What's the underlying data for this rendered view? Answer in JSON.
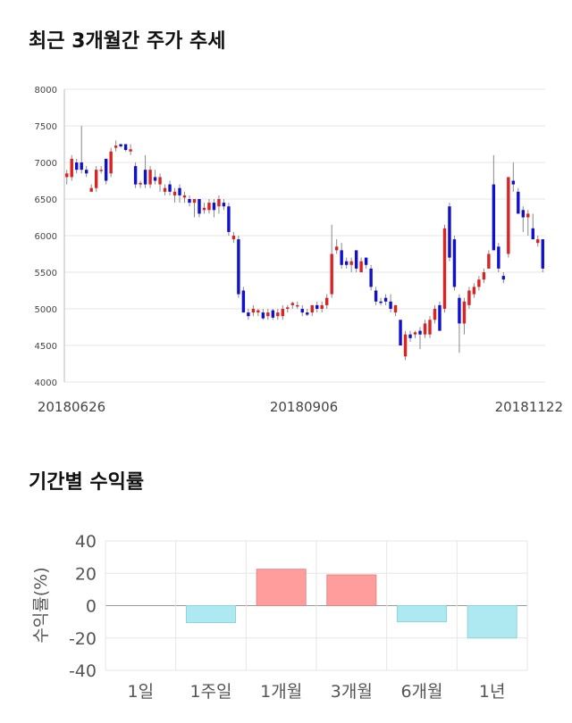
{
  "sections": {
    "stock_trend_title": "최근 3개월간 주가 추세",
    "returns_title": "기간별 수익률"
  },
  "chart_data": [
    {
      "type": "candlestick",
      "title": "최근 3개월간 주가 추세",
      "ylim": [
        4000,
        8000
      ],
      "y_ticks": [
        8000,
        7500,
        7000,
        6500,
        6000,
        5500,
        5000,
        4500,
        4000
      ],
      "x_tick_labels": [
        "20180626",
        "20180906",
        "20181122"
      ],
      "grid": true,
      "colors": {
        "up": "#dd2222",
        "down": "#1111cc",
        "wick": "#888888"
      },
      "candles": [
        {
          "o": 6800,
          "h": 6900,
          "l": 6700,
          "c": 6850
        },
        {
          "o": 6800,
          "h": 7100,
          "l": 6750,
          "c": 7050
        },
        {
          "o": 7000,
          "h": 7050,
          "l": 6850,
          "c": 6900
        },
        {
          "o": 7000,
          "h": 7500,
          "l": 6850,
          "c": 6900
        },
        {
          "o": 6900,
          "h": 6950,
          "l": 6800,
          "c": 6850
        },
        {
          "o": 6600,
          "h": 6700,
          "l": 6600,
          "c": 6650
        },
        {
          "o": 6650,
          "h": 6950,
          "l": 6600,
          "c": 6900
        },
        {
          "o": 6900,
          "h": 6950,
          "l": 6850,
          "c": 6900
        },
        {
          "o": 7050,
          "h": 7050,
          "l": 6700,
          "c": 6750
        },
        {
          "o": 6850,
          "h": 7200,
          "l": 6800,
          "c": 7150
        },
        {
          "o": 7200,
          "h": 7300,
          "l": 7150,
          "c": 7230
        },
        {
          "o": 7250,
          "h": 7250,
          "l": 7200,
          "c": 7220
        },
        {
          "o": 7250,
          "h": 7250,
          "l": 7150,
          "c": 7170
        },
        {
          "o": 7150,
          "h": 7250,
          "l": 7100,
          "c": 7180
        },
        {
          "o": 6950,
          "h": 7000,
          "l": 6650,
          "c": 6700
        },
        {
          "o": 6700,
          "h": 6750,
          "l": 6650,
          "c": 6720
        },
        {
          "o": 6900,
          "h": 7100,
          "l": 6650,
          "c": 6700
        },
        {
          "o": 6700,
          "h": 6950,
          "l": 6650,
          "c": 6900
        },
        {
          "o": 6800,
          "h": 6900,
          "l": 6700,
          "c": 6750
        },
        {
          "o": 6700,
          "h": 6850,
          "l": 6600,
          "c": 6800
        },
        {
          "o": 6600,
          "h": 6700,
          "l": 6550,
          "c": 6650
        },
        {
          "o": 6700,
          "h": 6750,
          "l": 6550,
          "c": 6600
        },
        {
          "o": 6550,
          "h": 6650,
          "l": 6450,
          "c": 6600
        },
        {
          "o": 6650,
          "h": 6700,
          "l": 6450,
          "c": 6550
        },
        {
          "o": 6520,
          "h": 6600,
          "l": 6450,
          "c": 6550
        },
        {
          "o": 6500,
          "h": 6550,
          "l": 6400,
          "c": 6450
        },
        {
          "o": 6450,
          "h": 6500,
          "l": 6250,
          "c": 6500
        },
        {
          "o": 6500,
          "h": 6500,
          "l": 6250,
          "c": 6300
        },
        {
          "o": 6350,
          "h": 6450,
          "l": 6300,
          "c": 6380
        },
        {
          "o": 6350,
          "h": 6500,
          "l": 6300,
          "c": 6450
        },
        {
          "o": 6450,
          "h": 6500,
          "l": 6250,
          "c": 6350
        },
        {
          "o": 6400,
          "h": 6550,
          "l": 6300,
          "c": 6500
        },
        {
          "o": 6450,
          "h": 6500,
          "l": 6350,
          "c": 6400
        },
        {
          "o": 6400,
          "h": 6450,
          "l": 6000,
          "c": 6050
        },
        {
          "o": 5950,
          "h": 6050,
          "l": 5900,
          "c": 6000
        },
        {
          "o": 5950,
          "h": 6000,
          "l": 5150,
          "c": 5200
        },
        {
          "o": 5250,
          "h": 5300,
          "l": 4950,
          "c": 4950
        },
        {
          "o": 4950,
          "h": 5000,
          "l": 4850,
          "c": 4900
        },
        {
          "o": 4950,
          "h": 5050,
          "l": 4900,
          "c": 5000
        },
        {
          "o": 4950,
          "h": 5000,
          "l": 4900,
          "c": 4980
        },
        {
          "o": 4950,
          "h": 5000,
          "l": 4850,
          "c": 4870
        },
        {
          "o": 4900,
          "h": 5000,
          "l": 4850,
          "c": 4950
        },
        {
          "o": 4980,
          "h": 5000,
          "l": 4850,
          "c": 4880
        },
        {
          "o": 4900,
          "h": 5000,
          "l": 4850,
          "c": 4950
        },
        {
          "o": 4900,
          "h": 5050,
          "l": 4850,
          "c": 5000
        },
        {
          "o": 5000,
          "h": 5050,
          "l": 4950,
          "c": 5020
        },
        {
          "o": 5050,
          "h": 5100,
          "l": 5000,
          "c": 5080
        },
        {
          "o": 5050,
          "h": 5100,
          "l": 5000,
          "c": 5050
        },
        {
          "o": 5000,
          "h": 5050,
          "l": 4900,
          "c": 4950
        },
        {
          "o": 4950,
          "h": 5000,
          "l": 4900,
          "c": 4920
        },
        {
          "o": 4950,
          "h": 5050,
          "l": 4900,
          "c": 5050
        },
        {
          "o": 5050,
          "h": 5100,
          "l": 4950,
          "c": 5000
        },
        {
          "o": 5000,
          "h": 5100,
          "l": 4950,
          "c": 5050
        },
        {
          "o": 5050,
          "h": 5200,
          "l": 5000,
          "c": 5150
        },
        {
          "o": 5200,
          "h": 6150,
          "l": 5150,
          "c": 5750
        },
        {
          "o": 5800,
          "h": 5950,
          "l": 5750,
          "c": 5850
        },
        {
          "o": 5800,
          "h": 5900,
          "l": 5550,
          "c": 5600
        },
        {
          "o": 5650,
          "h": 5700,
          "l": 5550,
          "c": 5600
        },
        {
          "o": 5600,
          "h": 5700,
          "l": 5500,
          "c": 5650
        },
        {
          "o": 5800,
          "h": 5800,
          "l": 5500,
          "c": 5550
        },
        {
          "o": 5500,
          "h": 5700,
          "l": 5500,
          "c": 5650
        },
        {
          "o": 5700,
          "h": 5700,
          "l": 5550,
          "c": 5600
        },
        {
          "o": 5550,
          "h": 5600,
          "l": 5250,
          "c": 5300
        },
        {
          "o": 5250,
          "h": 5300,
          "l": 5050,
          "c": 5100
        },
        {
          "o": 5100,
          "h": 5150,
          "l": 5050,
          "c": 5080
        },
        {
          "o": 5150,
          "h": 5200,
          "l": 5050,
          "c": 5100
        },
        {
          "o": 5100,
          "h": 5200,
          "l": 4950,
          "c": 5000
        },
        {
          "o": 4950,
          "h": 5050,
          "l": 4900,
          "c": 5050
        },
        {
          "o": 4850,
          "h": 4850,
          "l": 4500,
          "c": 4500
        },
        {
          "o": 4350,
          "h": 4700,
          "l": 4300,
          "c": 4650
        },
        {
          "o": 4650,
          "h": 4700,
          "l": 4550,
          "c": 4600
        },
        {
          "o": 4650,
          "h": 4700,
          "l": 4600,
          "c": 4680
        },
        {
          "o": 4700,
          "h": 4750,
          "l": 4450,
          "c": 4650
        },
        {
          "o": 4650,
          "h": 4850,
          "l": 4600,
          "c": 4800
        },
        {
          "o": 4650,
          "h": 4900,
          "l": 4600,
          "c": 4850
        },
        {
          "o": 4850,
          "h": 5050,
          "l": 4800,
          "c": 5000
        },
        {
          "o": 5050,
          "h": 5100,
          "l": 4700,
          "c": 4700
        },
        {
          "o": 5000,
          "h": 6150,
          "l": 4950,
          "c": 6100
        },
        {
          "o": 6400,
          "h": 6450,
          "l": 5650,
          "c": 5700
        },
        {
          "o": 5950,
          "h": 6000,
          "l": 5250,
          "c": 5300
        },
        {
          "o": 5150,
          "h": 5200,
          "l": 4400,
          "c": 4800
        },
        {
          "o": 4800,
          "h": 5150,
          "l": 4650,
          "c": 5100
        },
        {
          "o": 5050,
          "h": 5300,
          "l": 5000,
          "c": 5250
        },
        {
          "o": 5200,
          "h": 5350,
          "l": 5150,
          "c": 5300
        },
        {
          "o": 5300,
          "h": 5450,
          "l": 5250,
          "c": 5400
        },
        {
          "o": 5400,
          "h": 5550,
          "l": 5350,
          "c": 5500
        },
        {
          "o": 5550,
          "h": 5800,
          "l": 5550,
          "c": 5750
        },
        {
          "o": 6700,
          "h": 7100,
          "l": 5800,
          "c": 5800
        },
        {
          "o": 5850,
          "h": 5900,
          "l": 5500,
          "c": 5550
        },
        {
          "o": 5450,
          "h": 5500,
          "l": 5350,
          "c": 5400
        },
        {
          "o": 5750,
          "h": 6800,
          "l": 5700,
          "c": 6800
        },
        {
          "o": 6750,
          "h": 7000,
          "l": 6600,
          "c": 6700
        },
        {
          "o": 6600,
          "h": 6650,
          "l": 6300,
          "c": 6300
        },
        {
          "o": 6350,
          "h": 6400,
          "l": 6050,
          "c": 6250
        },
        {
          "o": 6250,
          "h": 6350,
          "l": 6000,
          "c": 6300
        },
        {
          "o": 6100,
          "h": 6300,
          "l": 5950,
          "c": 5950
        },
        {
          "o": 5900,
          "h": 6000,
          "l": 5850,
          "c": 5950
        },
        {
          "o": 5950,
          "h": 5950,
          "l": 5500,
          "c": 5550
        }
      ]
    },
    {
      "type": "bar",
      "title": "기간별 수익률",
      "ylabel": "수익률(%)",
      "ylim": [
        -40,
        40
      ],
      "y_ticks": [
        40,
        20,
        0,
        -20,
        -40
      ],
      "categories": [
        "1일",
        "1주일",
        "1개월",
        "3개월",
        "6개월",
        "1년"
      ],
      "values": [
        0,
        -10.5,
        22.5,
        19,
        -10,
        -20
      ],
      "grid": true,
      "colors": {
        "positive": "#ff9c9c",
        "negative": "#aee9f2",
        "positive_edge": "#e08888",
        "negative_edge": "#8fd3df"
      }
    }
  ]
}
